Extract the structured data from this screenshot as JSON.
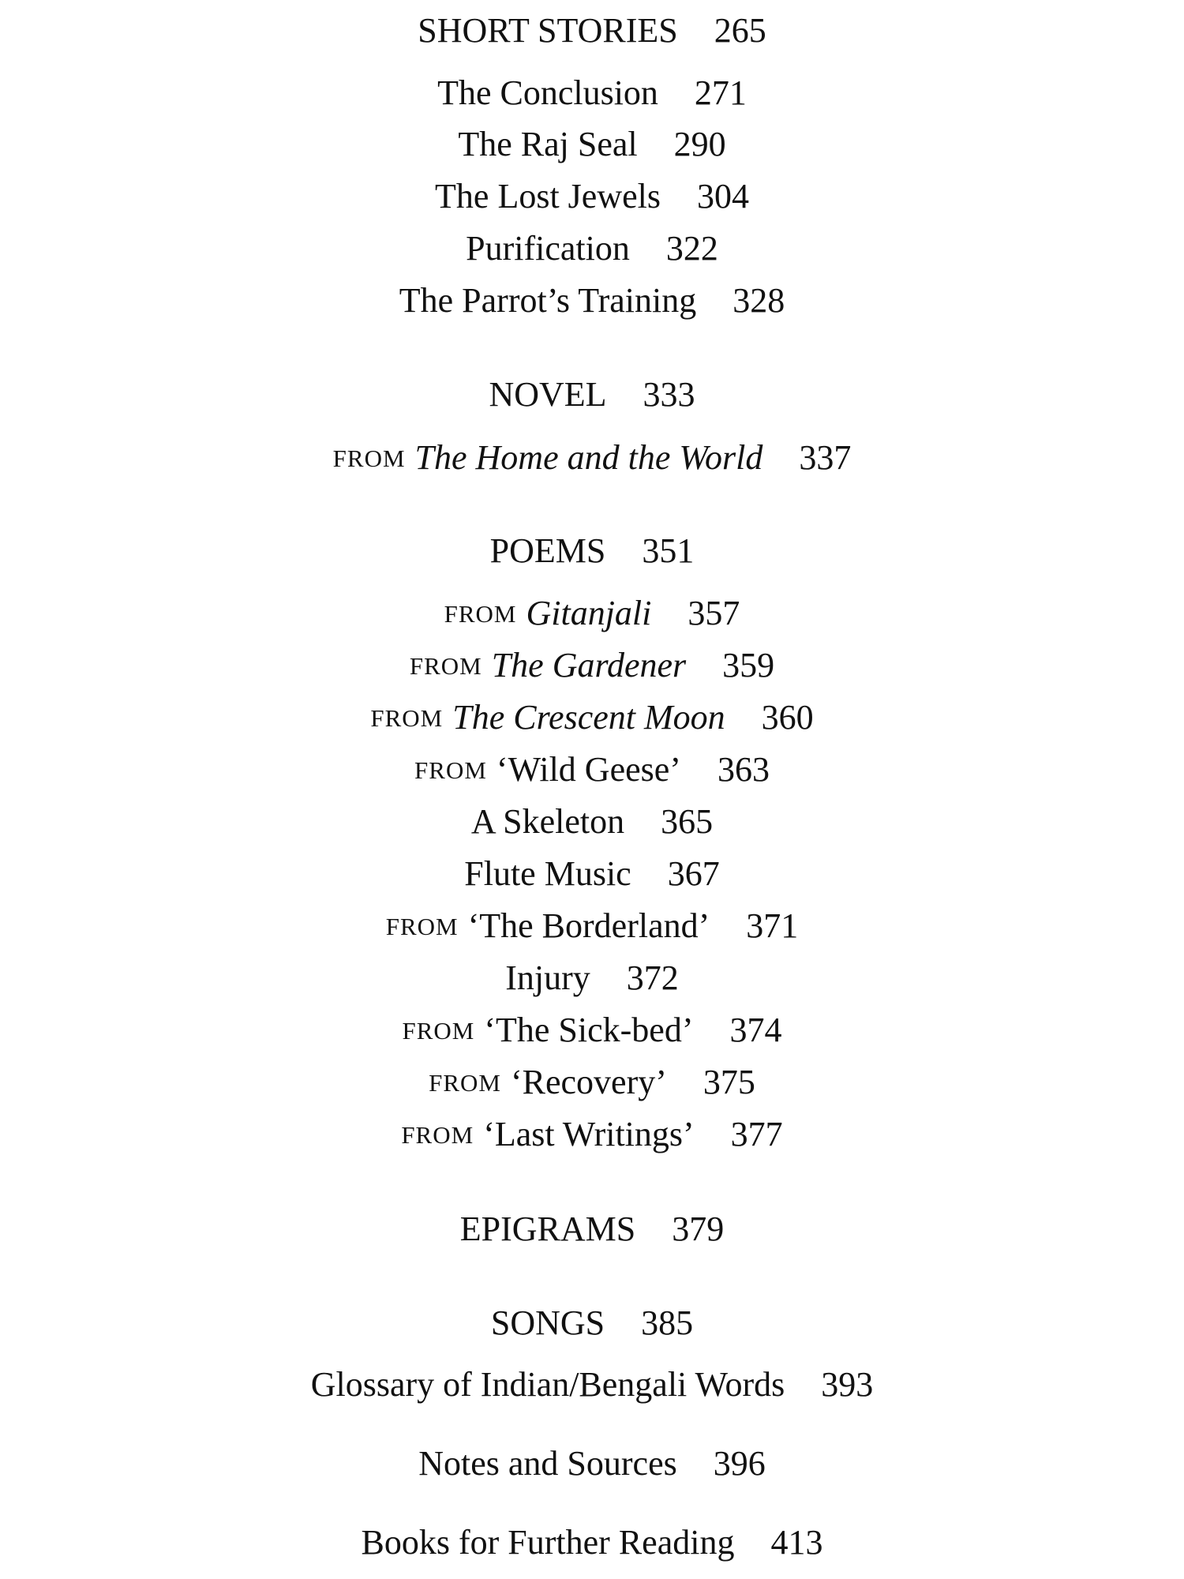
{
  "contents": {
    "lines": [
      {
        "title": "SHORT STORIES",
        "page": 265
      },
      {
        "title": "The Conclusion",
        "page": 271
      },
      {
        "title": "The Raj Seal",
        "page": 290
      },
      {
        "title": "The Lost Jewels",
        "page": 304
      },
      {
        "title": "Purification",
        "page": 322
      },
      {
        "title": "The Parrot’s Training",
        "page": 328
      },
      {
        "title": "NOVEL",
        "page": 333
      },
      {
        "prefix": "FROM",
        "title": "The Home and the World",
        "italic": true,
        "page": 337
      },
      {
        "title": "POEMS",
        "page": 351
      },
      {
        "prefix": "FROM",
        "title": "Gitanjali",
        "italic": true,
        "page": 357
      },
      {
        "prefix": "FROM",
        "title": "The Gardener",
        "italic": true,
        "page": 359
      },
      {
        "prefix": "FROM",
        "title": "The Crescent Moon",
        "italic": true,
        "page": 360
      },
      {
        "prefix": "FROM",
        "title": "‘Wild Geese’",
        "page": 363
      },
      {
        "title": "A Skeleton",
        "page": 365
      },
      {
        "title": "Flute Music",
        "page": 367
      },
      {
        "prefix": "FROM",
        "title": "‘The Borderland’",
        "page": 371
      },
      {
        "title": "Injury",
        "page": 372
      },
      {
        "prefix": "FROM",
        "title": "‘The Sick-bed’",
        "page": 374
      },
      {
        "prefix": "FROM",
        "title": "‘Recovery’",
        "page": 375
      },
      {
        "prefix": "FROM",
        "title": "‘Last Writings’",
        "page": 377
      },
      {
        "title": "EPIGRAMS",
        "page": 379
      },
      {
        "title": "SONGS",
        "page": 385
      },
      {
        "title": "Glossary of Indian/Bengali Words",
        "page": 393
      },
      {
        "title": "Notes and Sources",
        "page": 396
      },
      {
        "title": "Books for Further Reading",
        "page": 413
      }
    ]
  }
}
